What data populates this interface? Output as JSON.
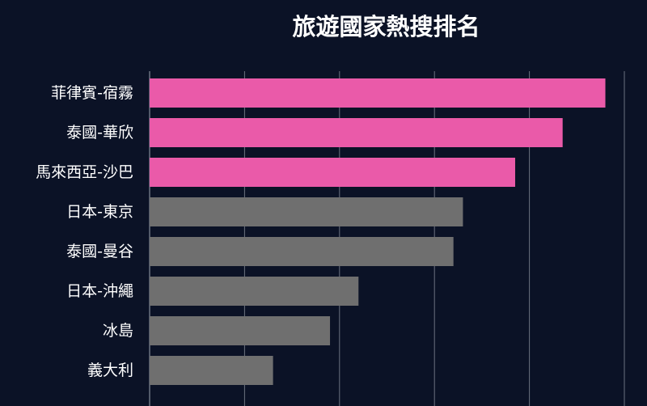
{
  "chart_data": {
    "type": "bar",
    "orientation": "horizontal",
    "title": "旅遊國家熱搜排名",
    "xlabel": "",
    "ylabel": "",
    "categories": [
      "菲律賓-宿霧",
      "泰國-華欣",
      "馬來西亞-沙巴",
      "日本-東京",
      "泰國-曼谷",
      "日本-沖繩",
      "冰島",
      "義大利"
    ],
    "values": [
      96,
      87,
      77,
      66,
      64,
      44,
      38,
      26
    ],
    "xlim": [
      0,
      100
    ],
    "grid": true,
    "legend": "none",
    "highlight_count": 3,
    "colors": {
      "background": "#0b1226",
      "highlight": "#ea5aa9",
      "normal": "#6f6f6f",
      "grid": "#6b7280",
      "text": "#ffffff"
    }
  }
}
